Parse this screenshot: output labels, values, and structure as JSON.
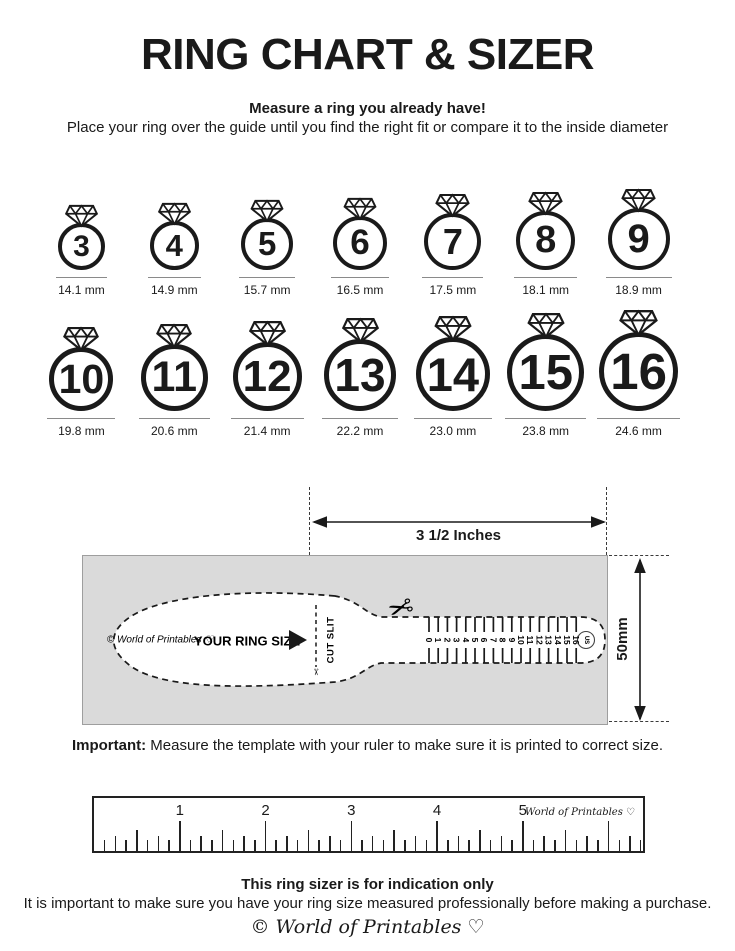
{
  "page": {
    "background": "#ffffff",
    "ink": "#1a1a1a",
    "template_gray": "#dadada"
  },
  "title": "RING CHART & SIZER",
  "intro": {
    "heading": "Measure a ring you already have!",
    "subheading": "Place your ring over the guide until you find the right fit or compare it to the inside diameter"
  },
  "ring_chart": {
    "rows": [
      {
        "items": [
          {
            "size": "3",
            "label": "14.1 mm",
            "mm": 14.1
          },
          {
            "size": "4",
            "label": "14.9 mm",
            "mm": 14.9
          },
          {
            "size": "5",
            "label": "15.7 mm",
            "mm": 15.7
          },
          {
            "size": "6",
            "label": "16.5 mm",
            "mm": 16.5
          },
          {
            "size": "7",
            "label": "17.5 mm",
            "mm": 17.5
          },
          {
            "size": "8",
            "label": "18.1 mm",
            "mm": 18.1
          },
          {
            "size": "9",
            "label": "18.9 mm",
            "mm": 18.9
          }
        ]
      },
      {
        "items": [
          {
            "size": "10",
            "label": "19.8 mm",
            "mm": 19.8
          },
          {
            "size": "11",
            "label": "20.6 mm",
            "mm": 20.6
          },
          {
            "size": "12",
            "label": "21.4 mm",
            "mm": 21.4
          },
          {
            "size": "13",
            "label": "22.2 mm",
            "mm": 22.2
          },
          {
            "size": "14",
            "label": "23.0 mm",
            "mm": 23.0
          },
          {
            "size": "15",
            "label": "23.8 mm",
            "mm": 23.8
          },
          {
            "size": "16",
            "label": "24.6 mm",
            "mm": 24.6
          }
        ]
      }
    ]
  },
  "sizer": {
    "width_label": "3 1/2 Inches",
    "height_label": "50mm",
    "brand": "© World of Printables ♡",
    "ring_size_label": "YOUR RING SIZE",
    "cut_slit_label": "CUT SLIT",
    "scissors_icon": "✂",
    "unit_badge": "US",
    "scale_numbers": [
      "0",
      "1",
      "2",
      "3",
      "4",
      "5",
      "6",
      "7",
      "8",
      "9",
      "10",
      "11",
      "12",
      "13",
      "14",
      "15",
      "16"
    ]
  },
  "important": {
    "label": "Important:",
    "text": " Measure the template with your ruler to make sure it is printed to correct size."
  },
  "ruler": {
    "unit_numbers": [
      "1",
      "2",
      "3",
      "4",
      "5"
    ],
    "brand": "World of Printables ♡"
  },
  "footer": {
    "bold_line": "This ring sizer is for indication only",
    "text_line": "It is important to make sure you have your ring size measured professionally before making a purchase.",
    "brand": "© World of Printables ♡"
  }
}
